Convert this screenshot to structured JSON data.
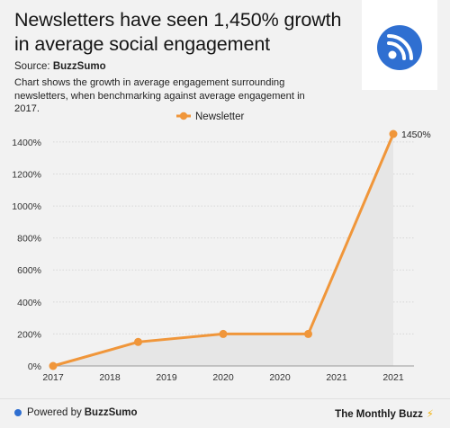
{
  "header": {
    "title": "Newsletters have seen 1,450% growth in average social engagement",
    "source_label": "Source:",
    "source_name": "BuzzSumo",
    "description": "Chart shows the growth in average engagement surrounding newsletters, when benchmarking against average engagement in 2017."
  },
  "logo": {
    "icon": "newsletter-rss-icon",
    "color": "#2f6fd1"
  },
  "footer": {
    "powered_label": "Powered by",
    "powered_brand": "BuzzSumo",
    "brand": "The Monthly Buzz",
    "brand_icon": "lightning-bolt-icon"
  },
  "colors": {
    "series": "#f0963a",
    "area": "#e6e6e6",
    "grid": "#d7d7d7",
    "accent_blue": "#2f6fd1"
  },
  "chart_data": {
    "type": "line",
    "title": "Newsletters have seen 1,450% growth in average social engagement",
    "xlabel": "",
    "ylabel": "",
    "x_ticks": [
      "2017",
      "2018",
      "2019",
      "2020",
      "2020",
      "2021",
      "2021"
    ],
    "y_ticks": [
      "0%",
      "200%",
      "400%",
      "600%",
      "800%",
      "1000%",
      "1200%",
      "1400%"
    ],
    "ylim": [
      0,
      1450
    ],
    "grid": true,
    "legend": "top-center",
    "series": [
      {
        "name": "Newsletter",
        "x": [
          "2017",
          "2018",
          "2019",
          "2020",
          "2021"
        ],
        "values": [
          0,
          150,
          200,
          200,
          1450
        ],
        "labels": [
          "",
          "",
          "",
          "",
          "1450%"
        ]
      }
    ]
  }
}
